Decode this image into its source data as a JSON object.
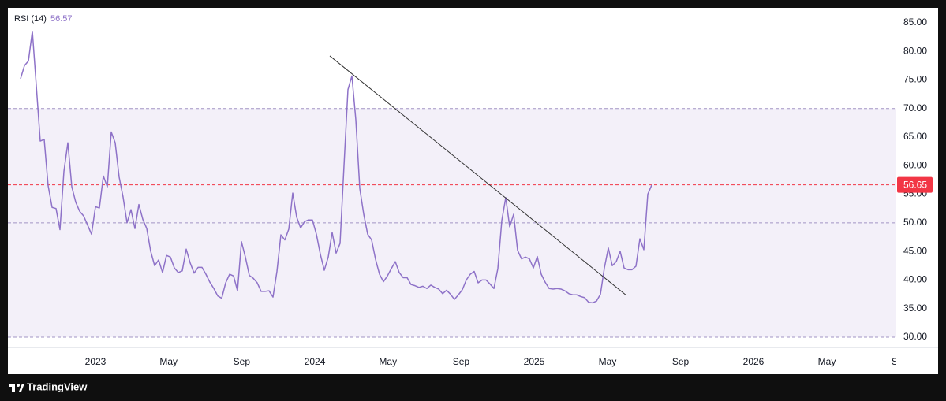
{
  "chart_data": {
    "type": "line",
    "series": [
      {
        "name": "RSI (14)",
        "color": "#8e72c8",
        "x": [
          -19,
          -18,
          -17,
          -16,
          -15,
          -14,
          -13,
          -12,
          -11,
          -10,
          -9,
          -8,
          -7,
          -6,
          -5,
          -4,
          -3,
          -2,
          -1,
          0,
          1,
          2,
          3,
          4,
          5,
          6,
          7,
          8,
          9,
          10,
          11,
          12,
          13,
          14,
          15,
          16,
          17,
          18,
          19,
          20,
          21,
          22,
          23,
          24,
          25,
          26,
          27,
          28,
          29,
          30,
          31,
          32,
          33,
          34,
          35,
          36,
          37,
          38,
          39,
          40,
          41,
          42,
          43,
          44,
          45,
          46,
          47,
          48,
          49,
          50,
          51,
          52,
          53,
          54,
          55,
          56,
          57,
          58,
          59,
          60,
          61,
          62,
          63,
          64,
          65,
          66,
          67,
          68,
          69,
          70,
          71,
          72,
          73,
          74,
          75,
          76,
          77,
          78,
          79,
          80,
          81,
          82,
          83,
          84,
          85,
          86,
          87,
          88,
          89,
          90,
          91,
          92,
          93,
          94,
          95,
          96,
          97,
          98,
          99,
          100,
          101,
          102,
          103,
          104,
          105,
          106,
          107,
          108,
          109,
          110,
          111,
          112,
          113,
          114,
          115,
          116,
          117,
          118,
          119,
          120,
          121,
          122,
          123,
          124,
          125,
          126,
          127,
          128,
          129,
          130,
          131,
          132,
          133,
          134,
          135,
          136,
          137,
          138,
          139,
          140,
          141
        ],
        "values": [
          75.2,
          77.5,
          78.3,
          83.5,
          74,
          64.3,
          64.6,
          56.5,
          52.7,
          52.5,
          48.8,
          59,
          64,
          56.3,
          53.6,
          52,
          51.2,
          49.6,
          48,
          52.8,
          52.6,
          58.2,
          56.3,
          65.9,
          64,
          58,
          54.5,
          50,
          52.3,
          49,
          53.2,
          50.6,
          49,
          45,
          42.5,
          43.5,
          41.3,
          44.3,
          44,
          42.1,
          41.3,
          41.6,
          45.4,
          43,
          41.2,
          42.2,
          42.2,
          41,
          39.6,
          38.5,
          37.2,
          36.8,
          39.5,
          41,
          40.7,
          38.1,
          46.7,
          44,
          40.8,
          40.3,
          39.5,
          38,
          38,
          38.1,
          37,
          41.5,
          47.9,
          47,
          48.9,
          55.2,
          51,
          49.1,
          50.2,
          50.5,
          50.5,
          48,
          44.5,
          41.7,
          44,
          48.3,
          44.7,
          46.4,
          60,
          73.3,
          75.7,
          68,
          56,
          51.5,
          48,
          47,
          43.6,
          41,
          39.7,
          40.7,
          42,
          43.2,
          41.3,
          40.4,
          40.4,
          39.2,
          39,
          38.7,
          38.9,
          38.5,
          39.1,
          38.7,
          38.4,
          37.6,
          38.2,
          37.5,
          36.6,
          37.4,
          38.3,
          40,
          41,
          41.5,
          39.5,
          40,
          40,
          39.3,
          38.5,
          42,
          50.4,
          54.4,
          49.3,
          51.5,
          45.2,
          43.7,
          44,
          43.7,
          42.1,
          44.1,
          41,
          39.6,
          38.5,
          38.4,
          38.5,
          38.4,
          38.1,
          37.6,
          37.4,
          37.4,
          37.1,
          36.9,
          36.1,
          36,
          36.3,
          37.5,
          42.1,
          45.6,
          42.5,
          43.2,
          45,
          42.1,
          41.8,
          41.8,
          42.4,
          47.2,
          45.3,
          55,
          56.6
        ]
      }
    ],
    "legend_value": 56.57,
    "last_value": 56.65,
    "last_value_color": "#f23645",
    "band": [
      30,
      70
    ],
    "band_color": "rgba(126,87,194,0.09)",
    "levels": [
      70,
      50,
      30
    ],
    "trendline": {
      "x": [
        59.4,
        134.4
      ],
      "values": [
        79.2,
        37.4
      ],
      "color": "#333333"
    },
    "xlim": [
      -22.2,
      202.8
    ],
    "xticks": [
      {
        "value": 0,
        "label": "2023"
      },
      {
        "value": 18.54,
        "label": "May"
      },
      {
        "value": 37.07,
        "label": "Sep"
      },
      {
        "value": 55.61,
        "label": "2024"
      },
      {
        "value": 74.15,
        "label": "May"
      },
      {
        "value": 92.68,
        "label": "Sep"
      },
      {
        "value": 111.2,
        "label": "2025"
      },
      {
        "value": 129.8,
        "label": "May"
      },
      {
        "value": 148.3,
        "label": "Sep"
      },
      {
        "value": 166.8,
        "label": "2026"
      },
      {
        "value": 185.4,
        "label": "May"
      },
      {
        "value": 203.9,
        "label": "Sep"
      }
    ],
    "ylim": [
      28.2,
      87.6
    ],
    "yticks": [
      {
        "value": 30,
        "label": "30.00"
      },
      {
        "value": 35,
        "label": "35.00"
      },
      {
        "value": 40,
        "label": "40.00"
      },
      {
        "value": 45,
        "label": "45.00"
      },
      {
        "value": 50,
        "label": "50.00"
      },
      {
        "value": 55,
        "label": "55.00"
      },
      {
        "value": 60,
        "label": "60.00"
      },
      {
        "value": 65,
        "label": "65.00"
      },
      {
        "value": 70,
        "label": "70.00"
      },
      {
        "value": 75,
        "label": "75.00"
      },
      {
        "value": 80,
        "label": "80.00"
      },
      {
        "value": 85,
        "label": "85.00"
      }
    ]
  },
  "footer": {
    "brand": "TradingView"
  }
}
